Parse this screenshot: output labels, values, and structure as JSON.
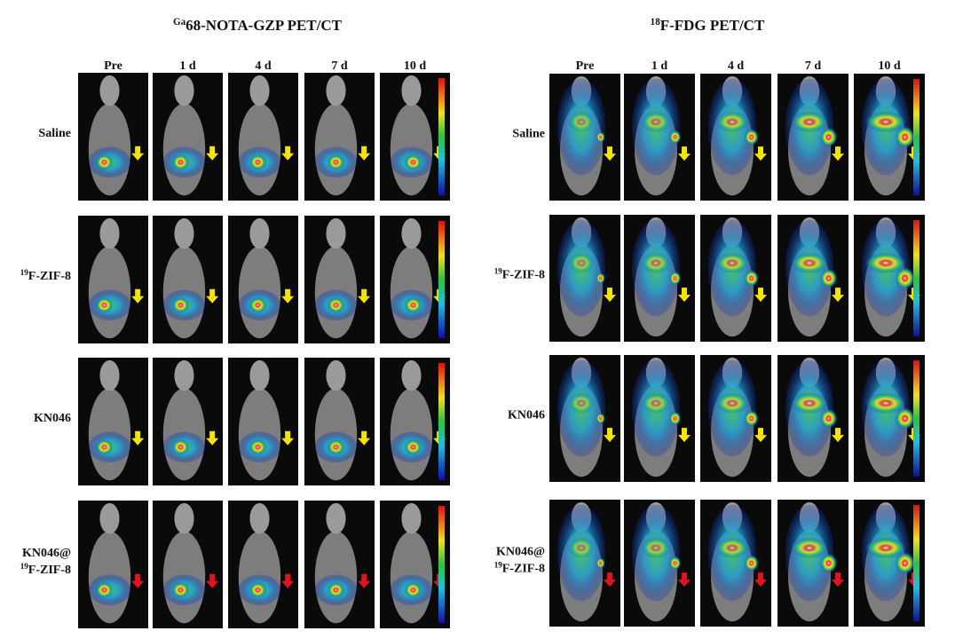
{
  "panels": [
    {
      "title": {
        "sup": "Ga",
        "text": "68-NOTA-GZP PET/CT"
      },
      "columns": [
        "Pre",
        "1 d",
        "4 d",
        "7 d",
        "10 d"
      ],
      "rows": [
        {
          "label": [
            {
              "text": "Saline"
            }
          ],
          "arrow_color": "#f5e400"
        },
        {
          "label": [
            {
              "sup": "19",
              "text": "F-ZIF-8"
            }
          ],
          "arrow_color": "#f5e400"
        },
        {
          "label": [
            {
              "text": "KN046"
            }
          ],
          "arrow_color": "#f5e400"
        },
        {
          "label": [
            {
              "text": "KN046@"
            },
            {
              "sup": "19",
              "text": "F-ZIF-8"
            }
          ],
          "arrow_color": "#e0141e"
        }
      ]
    },
    {
      "title": {
        "sup": "18",
        "text": "F-FDG PET/CT"
      },
      "columns": [
        "Pre",
        "1 d",
        "4 d",
        "7 d",
        "10 d"
      ],
      "rows": [
        {
          "label": [
            {
              "text": "Saline"
            }
          ],
          "arrow_color": "#f5e400"
        },
        {
          "label": [
            {
              "sup": "19",
              "text": "F-ZIF-8"
            }
          ],
          "arrow_color": "#f5e400"
        },
        {
          "label": [
            {
              "text": "KN046"
            }
          ],
          "arrow_color": "#f5e400"
        },
        {
          "label": [
            {
              "text": "KN046@"
            },
            {
              "sup": "19",
              "text": "F-ZIF-8"
            }
          ],
          "arrow_color": "#e0141e"
        }
      ]
    }
  ]
}
